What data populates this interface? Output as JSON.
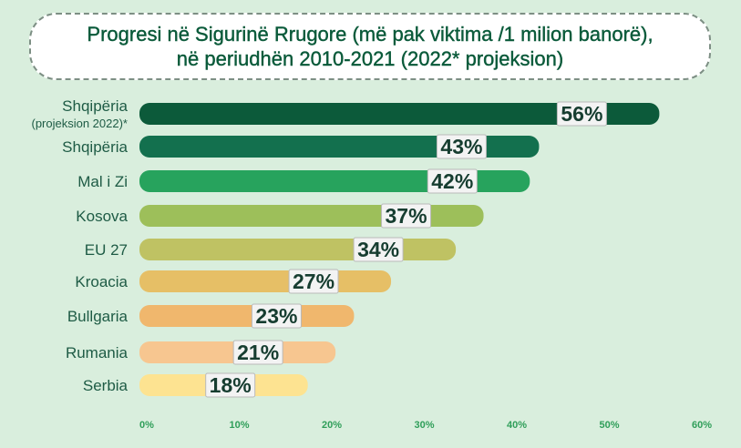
{
  "title": {
    "line1": "Progresi në Sigurinë Rrugore (më pak viktima /1 milion banorë),",
    "line2": "në periudhën 2010-2021 (2022* projeksion)"
  },
  "chart_data": {
    "type": "bar",
    "orientation": "horizontal",
    "categories": [
      [
        "Shqipëria",
        "(projeksion 2022)*"
      ],
      [
        "Shqipëria"
      ],
      [
        "Mal i Zi"
      ],
      [
        "Kosova"
      ],
      [
        "EU 27"
      ],
      [
        "Kroacia"
      ],
      [
        "Bullgaria"
      ],
      [
        "Rumania"
      ],
      [
        "Serbia"
      ]
    ],
    "values": [
      56,
      43,
      42,
      37,
      34,
      27,
      23,
      21,
      18
    ],
    "value_labels": [
      "56%",
      "43%",
      "42%",
      "37%",
      "34%",
      "27%",
      "23%",
      "21%",
      "18%"
    ],
    "bar_colors": [
      "#0c5a3a",
      "#13704e",
      "#27a35d",
      "#9dbf5a",
      "#bfc263",
      "#e6bf66",
      "#f0b76d",
      "#f7c690",
      "#fde391"
    ],
    "xlim": [
      0,
      60
    ],
    "xticks": [
      0,
      10,
      20,
      30,
      40,
      50,
      60
    ],
    "xtick_labels": [
      "0%",
      "10%",
      "20%",
      "30%",
      "40%",
      "50%",
      "60%"
    ],
    "grid": false,
    "legend": "none"
  }
}
